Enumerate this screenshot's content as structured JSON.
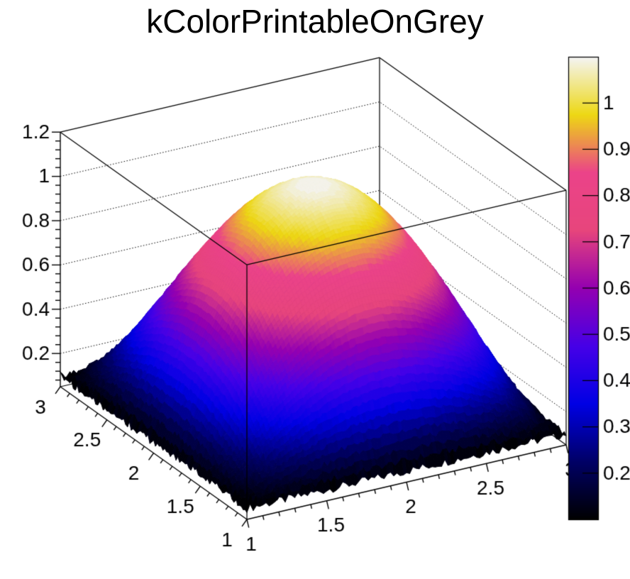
{
  "title": "kColorPrintableOnGrey",
  "colors": {
    "background": "#ffffff",
    "frame": "#000000",
    "text": "#000000"
  },
  "chart_data": {
    "type": "surface3d",
    "title": "kColorPrintableOnGrey",
    "draw_style": "SURF2Z",
    "function": "z = 0.1 + (1 - (x-2)^2) * (1 - (y-2)^2)",
    "x_axis": {
      "min": 1,
      "max": 3,
      "minor_step": 0.1,
      "tick_values": [
        1,
        1.5,
        2,
        2.5,
        3
      ],
      "tick_labels": [
        "1",
        "1.5",
        "2",
        "2.5",
        "3"
      ]
    },
    "y_axis": {
      "min": 1,
      "max": 3,
      "minor_step": 0.1,
      "tick_values": [
        1,
        1.5,
        2,
        2.5,
        3
      ],
      "tick_labels": [
        "1",
        "1.5",
        "2",
        "2.5",
        "3"
      ]
    },
    "z_axis": {
      "min": 0.05,
      "max": 1.2,
      "minor_step": 0.04,
      "tick_values": [
        0.2,
        0.4,
        0.6,
        0.8,
        1,
        1.2
      ],
      "tick_labels": [
        "0.2",
        "0.4",
        "0.6",
        "0.8",
        "1",
        "1.2"
      ]
    },
    "palette_axis": {
      "min": 0.1,
      "max": 1.1,
      "tick_values": [
        0.2,
        0.3,
        0.4,
        0.5,
        0.6,
        0.7,
        0.8,
        0.9,
        1
      ],
      "tick_labels": [
        "0.2",
        "0.3",
        "0.4",
        "0.5",
        "0.6",
        "0.7",
        "0.8",
        "0.9",
        "1"
      ]
    },
    "palette": {
      "name": "kColorPrintableOnGrey",
      "stops": [
        [
          0,
          "#000000"
        ],
        [
          0.125,
          "#000066"
        ],
        [
          0.25,
          "#0000E4"
        ],
        [
          0.375,
          "#4600E7"
        ],
        [
          0.5,
          "#9400B1"
        ],
        [
          0.625,
          "#E7457C"
        ],
        [
          0.75,
          "#EB4389"
        ],
        [
          0.875,
          "#EDD814"
        ],
        [
          1,
          "#F4F4F4"
        ]
      ]
    },
    "contour_levels": 99,
    "surface_grid_n": 100,
    "x_samples": [
      1,
      1.2,
      1.4,
      1.6,
      1.8,
      2,
      2.2,
      2.4,
      2.6,
      2.8,
      3
    ],
    "y_samples": [
      1,
      1.2,
      1.4,
      1.6,
      1.8,
      2,
      2.2,
      2.4,
      2.6,
      2.8,
      3
    ],
    "surface_samples": [
      [
        0.1,
        0.1,
        0.1,
        0.1,
        0.1,
        0.1,
        0.1,
        0.1,
        0.1,
        0.1,
        0.1
      ],
      [
        0.1,
        0.23,
        0.33,
        0.402,
        0.446,
        0.46,
        0.446,
        0.402,
        0.33,
        0.23,
        0.1
      ],
      [
        0.1,
        0.33,
        0.51,
        0.638,
        0.714,
        0.74,
        0.714,
        0.638,
        0.51,
        0.33,
        0.1
      ],
      [
        0.1,
        0.402,
        0.638,
        0.806,
        0.906,
        0.94,
        0.906,
        0.806,
        0.638,
        0.402,
        0.1
      ],
      [
        0.1,
        0.446,
        0.714,
        0.906,
        1.022,
        1.06,
        1.022,
        0.906,
        0.714,
        0.446,
        0.1
      ],
      [
        0.1,
        0.46,
        0.74,
        0.94,
        1.06,
        1.1,
        1.06,
        0.94,
        0.74,
        0.46,
        0.1
      ],
      [
        0.1,
        0.446,
        0.714,
        0.906,
        1.022,
        1.06,
        1.022,
        0.906,
        0.714,
        0.446,
        0.1
      ],
      [
        0.1,
        0.402,
        0.638,
        0.806,
        0.906,
        0.94,
        0.906,
        0.806,
        0.638,
        0.402,
        0.1
      ],
      [
        0.1,
        0.33,
        0.51,
        0.638,
        0.714,
        0.74,
        0.714,
        0.638,
        0.51,
        0.33,
        0.1
      ],
      [
        0.1,
        0.23,
        0.33,
        0.402,
        0.446,
        0.46,
        0.446,
        0.402,
        0.33,
        0.23,
        0.1
      ],
      [
        0.1,
        0.1,
        0.1,
        0.1,
        0.1,
        0.1,
        0.1,
        0.1,
        0.1,
        0.1,
        0.1
      ]
    ]
  }
}
